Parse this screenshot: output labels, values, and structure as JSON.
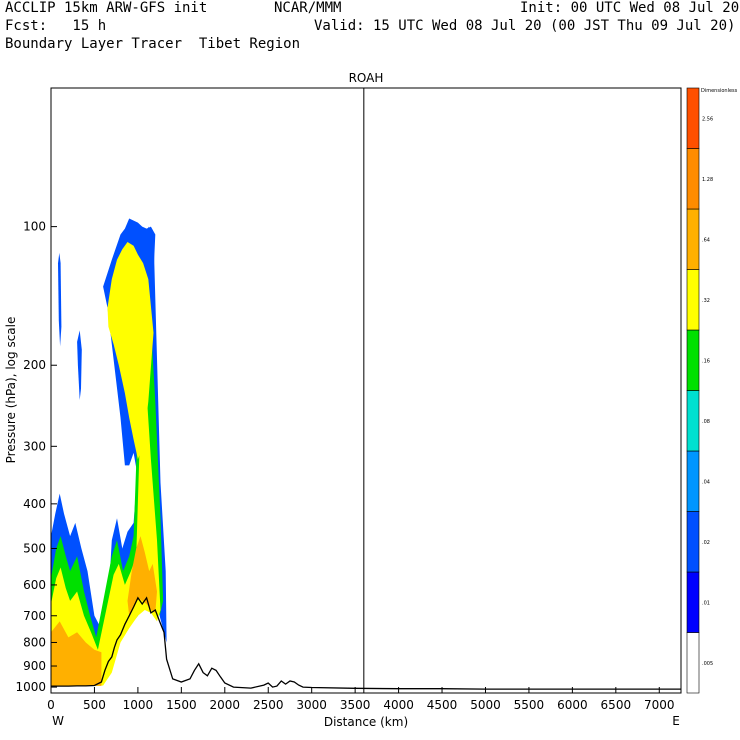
{
  "header": {
    "line1_left": "ACCLIP 15km ARW-GFS init",
    "line1_mid": "NCAR/MMM",
    "line1_right": "Init: 00 UTC Wed 08 Jul 20",
    "line2_left": "Fcst:   15 h",
    "line2_right": "Valid: 15 UTC Wed 08 Jul 20 (00 JST Thu 09 Jul 20)",
    "line3_left": "Boundary Layer Tracer  Tibet Region"
  },
  "chart_data": {
    "type": "heatmap",
    "title": "ROAH",
    "xlabel": "Distance (km)",
    "ylabel": "Pressure (hPa), log scale",
    "x_ticks": [
      0,
      500,
      1000,
      1500,
      2000,
      2500,
      3000,
      3500,
      4000,
      4500,
      5000,
      5500,
      6000,
      6500,
      7000
    ],
    "y_ticks": [
      100,
      200,
      300,
      400,
      500,
      600,
      700,
      800,
      900,
      1000
    ],
    "xlim": [
      0,
      7250
    ],
    "ylim": [
      1030,
      50
    ],
    "y_scale": "log",
    "left_end_label": "W",
    "right_end_label": "E",
    "vertical_marker_km": 3600,
    "colorbar": {
      "title": "Dimensionless",
      "levels": [
        ".005",
        ".01",
        ".02",
        ".04",
        ".08",
        ".16",
        ".32",
        ".64",
        "1.28",
        "2.56"
      ],
      "colors": [
        "#ffffff",
        "#0000ff",
        "#0050ff",
        "#0096ff",
        "#00e0d0",
        "#00e000",
        "#ffff00",
        "#ffb000",
        "#ff8c00",
        "#ff5000"
      ]
    },
    "terrain": {
      "x_km": [
        0,
        100,
        200,
        300,
        400,
        500,
        580,
        620,
        660,
        700,
        730,
        760,
        800,
        850,
        900,
        950,
        1000,
        1050,
        1100,
        1150,
        1200,
        1250,
        1300,
        1330,
        1400,
        1500,
        1600,
        1650,
        1700,
        1750,
        1800,
        1850,
        1900,
        1950,
        2000,
        2100,
        2300,
        2450,
        2500,
        2550,
        2600,
        2650,
        2700,
        2750,
        2800,
        2850,
        2900,
        3000,
        3500,
        4000,
        4500,
        5000,
        5500,
        6000,
        6500,
        7000,
        7250
      ],
      "p_hpa": [
        995,
        995,
        995,
        994,
        994,
        992,
        975,
        920,
        880,
        860,
        820,
        790,
        770,
        730,
        700,
        670,
        640,
        660,
        640,
        690,
        680,
        720,
        760,
        870,
        960,
        975,
        960,
        920,
        890,
        930,
        945,
        910,
        920,
        950,
        980,
        1000,
        1005,
        990,
        980,
        1000,
        995,
        970,
        985,
        970,
        975,
        990,
        1000,
        1002,
        1006,
        1008,
        1008,
        1010,
        1010,
        1010,
        1010,
        1010,
        1010
      ]
    },
    "tracer_regions": [
      {
        "level": ".02",
        "x_km": [
          0,
          50,
          100,
          150,
          220,
          280,
          350,
          420,
          500,
          600,
          650,
          700,
          760,
          820,
          880,
          950,
          1000,
          1060,
          1120,
          1180,
          1260,
          1320,
          1330,
          1250,
          1200,
          1150,
          1080,
          1000,
          900,
          800,
          700,
          600,
          500,
          400,
          300,
          200,
          100,
          0
        ],
        "p_hpa": [
          470,
          420,
          380,
          420,
          470,
          440,
          500,
          560,
          700,
          760,
          700,
          480,
          430,
          500,
          460,
          440,
          330,
          180,
          100,
          104,
          360,
          560,
          800,
          700,
          620,
          640,
          660,
          700,
          740,
          780,
          900,
          990,
          994,
          994,
          995,
          995,
          995,
          995
        ]
      },
      {
        "level": ".02",
        "x_km": [
          600,
          700,
          800,
          850,
          900,
          1000,
          1050,
          1100,
          1150,
          1200,
          1150,
          1100,
          1050,
          1000,
          950,
          900,
          850,
          800,
          700,
          650,
          600
        ],
        "p_hpa": [
          135,
          118,
          104,
          101,
          96,
          98,
          100,
          101,
          100,
          104,
          170,
          260,
          330,
          350,
          310,
          330,
          330,
          260,
          180,
          150,
          135
        ]
      },
      {
        "level": ".02",
        "x_km": [
          80,
          95,
          110,
          120,
          105,
          90
        ],
        "p_hpa": [
          120,
          114,
          120,
          165,
          182,
          160
        ]
      },
      {
        "level": ".02",
        "x_km": [
          300,
          330,
          355,
          345,
          330,
          310
        ],
        "p_hpa": [
          178,
          168,
          185,
          225,
          238,
          200
        ]
      },
      {
        "level": ".16",
        "x_km": [
          0,
          60,
          110,
          170,
          220,
          300,
          380,
          450,
          520,
          700,
          760,
          830,
          900,
          950,
          1000,
          1060,
          1120,
          1200,
          1260,
          1290,
          1250,
          1200,
          1150,
          1080,
          1000,
          900,
          800,
          700,
          600,
          500,
          400,
          300,
          200,
          100,
          0
        ],
        "p_hpa": [
          580,
          500,
          470,
          520,
          560,
          520,
          620,
          700,
          780,
          520,
          480,
          560,
          520,
          470,
          260,
          150,
          130,
          240,
          430,
          650,
          700,
          640,
          650,
          670,
          700,
          740,
          790,
          920,
          990,
          994,
          994,
          995,
          995,
          995,
          995
        ]
      },
      {
        "level": ".32",
        "x_km": [
          650,
          700,
          760,
          820,
          880,
          950,
          1000,
          1060,
          1120,
          1180,
          1120,
          1060,
          1000,
          950,
          900,
          850,
          780,
          720,
          660
        ],
        "p_hpa": [
          150,
          130,
          118,
          112,
          108,
          110,
          115,
          120,
          130,
          170,
          240,
          300,
          320,
          290,
          260,
          230,
          200,
          180,
          165
        ]
      },
      {
        "level": ".32",
        "x_km": [
          0,
          60,
          110,
          170,
          220,
          300,
          380,
          460,
          540,
          720,
          780,
          850,
          920,
          980,
          1020,
          1080,
          1150,
          1220,
          1260,
          1220,
          1150,
          1080,
          1000,
          900,
          800,
          700,
          600,
          500,
          400,
          300,
          200,
          100,
          0
        ],
        "p_hpa": [
          660,
          580,
          550,
          610,
          650,
          620,
          700,
          760,
          830,
          570,
          540,
          600,
          560,
          520,
          300,
          200,
          320,
          480,
          680,
          720,
          690,
          680,
          700,
          745,
          800,
          930,
          992,
          994,
          994,
          995,
          995,
          995,
          995
        ]
      },
      {
        "level": ".64",
        "x_km": [
          0,
          100,
          200,
          300,
          400,
          500,
          580,
          580,
          500,
          400,
          300,
          200,
          100,
          0
        ],
        "p_hpa": [
          760,
          720,
          780,
          760,
          800,
          830,
          840,
          994,
          994,
          994,
          995,
          995,
          995,
          995
        ]
      },
      {
        "level": ".64",
        "x_km": [
          880,
          930,
          980,
          1030,
          1080,
          1130,
          1170,
          1220,
          1200,
          1150,
          1100,
          1050,
          1000,
          950,
          900
        ],
        "p_hpa": [
          650,
          560,
          500,
          470,
          510,
          560,
          540,
          620,
          690,
          680,
          660,
          650,
          640,
          670,
          700
        ]
      }
    ]
  }
}
